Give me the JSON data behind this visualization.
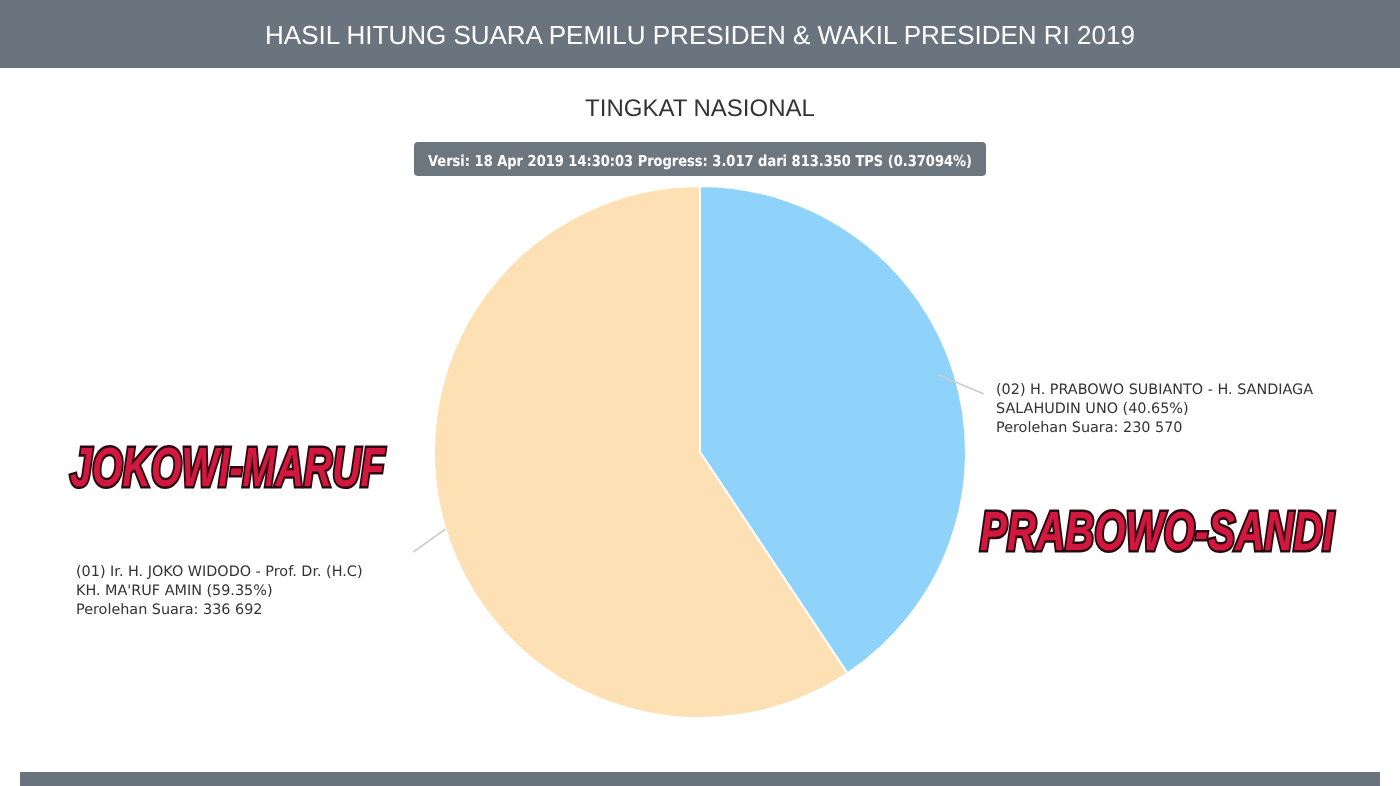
{
  "chart_data": {
    "type": "pie",
    "title": "HASIL HITUNG SUARA PEMILU PRESIDEN & WAKIL PRESIDEN RI 2019",
    "subtitle": "TINGKAT NASIONAL",
    "categories": [
      "(02) H. PRABOWO SUBIANTO - H. SANDIAGA SALAHUDIN UNO (40.65%)",
      "(01) Ir. H. JOKO WIDODO - Prof. Dr. (H.C) KH. MA'RUF AMIN (59.35%)"
    ],
    "values": [
      230570,
      336692
    ],
    "value_labels": [
      "Perolehan Suara: 230 570",
      "Perolehan Suara: 336 692"
    ],
    "colors": [
      "#8fd3fb",
      "#fde1b4"
    ],
    "annotations": [
      "Versi: 18 Apr 2019 14:30:03 Progress: 3.017 dari 813.350 TPS (0.37094%)",
      "PRABOWO-SANDI",
      "JOKOWI-MARUF"
    ]
  }
}
